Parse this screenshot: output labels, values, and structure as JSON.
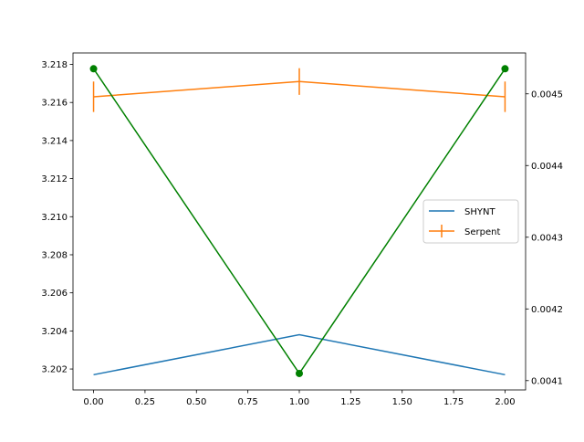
{
  "chart_data": {
    "type": "line",
    "title": "",
    "xlabel": "",
    "ylabel_left": "",
    "ylabel_right": "",
    "x": [
      0,
      1,
      2
    ],
    "xlim": [
      -0.1,
      2.1
    ],
    "ylim_left": [
      3.2009,
      3.2186
    ],
    "ylim_right": [
      0.004087,
      0.004557
    ],
    "x_ticks": [
      0,
      0.25,
      0.5,
      0.75,
      1.0,
      1.25,
      1.5,
      1.75,
      2.0
    ],
    "x_tick_labels": [
      "0.00",
      "0.25",
      "0.50",
      "0.75",
      "1.00",
      "1.25",
      "1.50",
      "1.75",
      "2.00"
    ],
    "y_left_ticks": [
      3.202,
      3.204,
      3.206,
      3.208,
      3.21,
      3.212,
      3.214,
      3.216,
      3.218
    ],
    "y_left_tick_labels": [
      "3.202",
      "3.204",
      "3.206",
      "3.208",
      "3.210",
      "3.212",
      "3.214",
      "3.216",
      "3.218"
    ],
    "y_right_ticks": [
      0.0041,
      0.0042,
      0.0043,
      0.0044,
      0.0045
    ],
    "y_right_tick_labels": [
      "0.0041",
      "0.0042",
      "0.0043",
      "0.0044",
      "0.0045"
    ],
    "series": [
      {
        "name": "SHYNT",
        "axis": "left",
        "color": "#1f77b4",
        "values": [
          3.2017,
          3.2038,
          3.2017
        ],
        "marker": "none"
      },
      {
        "name": "Serpent",
        "axis": "left",
        "color": "#ff7f0e",
        "values": [
          3.2163,
          3.2171,
          3.2163
        ],
        "errors": [
          0.0008,
          0.0007,
          0.0008
        ],
        "marker": "none"
      },
      {
        "name": "",
        "axis": "right",
        "color": "#008000",
        "values": [
          0.004535,
          0.00411,
          0.004535
        ],
        "marker": "circle"
      }
    ],
    "legend": {
      "position": "center-right",
      "entries": [
        "SHYNT",
        "Serpent"
      ]
    },
    "grid": false
  }
}
